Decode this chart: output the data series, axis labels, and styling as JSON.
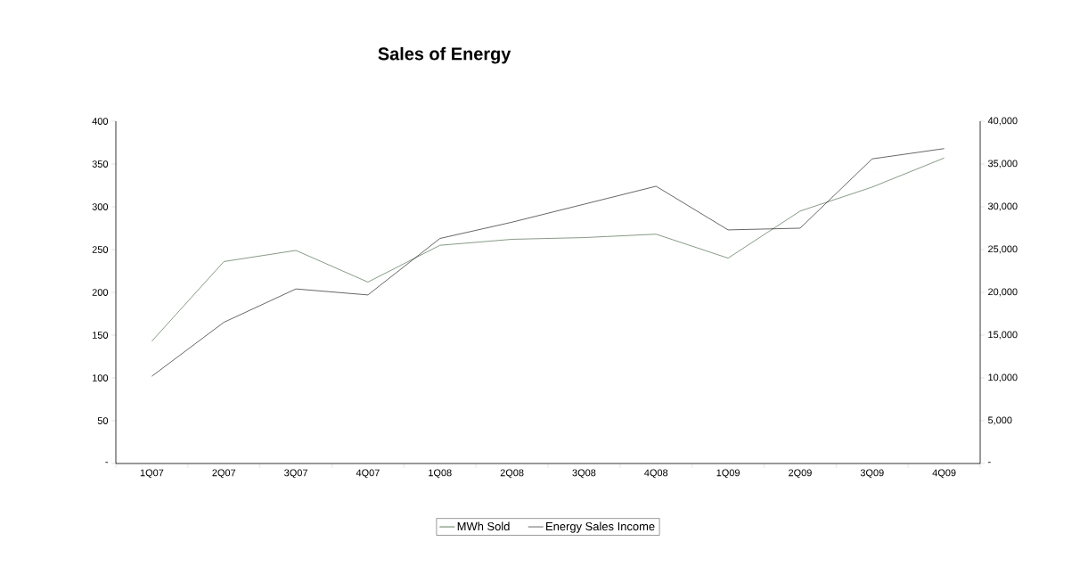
{
  "chart_data": {
    "type": "line",
    "title": "Sales of Energy",
    "categories": [
      "1Q07",
      "2Q07",
      "3Q07",
      "4Q07",
      "1Q08",
      "2Q08",
      "3Q08",
      "4Q08",
      "1Q09",
      "2Q09",
      "3Q09",
      "4Q09"
    ],
    "series": [
      {
        "name": "MWh Sold",
        "color": "#2e5e2e",
        "values": [
          143,
          236,
          249,
          212,
          255,
          262,
          264,
          268,
          240,
          295,
          323,
          357
        ]
      },
      {
        "name": "Energy Sales Income",
        "color": "#000000",
        "axis": "y2",
        "values": [
          10200,
          16500,
          20400,
          19700,
          26300,
          28200,
          30300,
          32400,
          27300,
          27500,
          35600,
          36800
        ]
      }
    ],
    "ylim": [
      0,
      400
    ],
    "yticks": [
      {
        "value": 0,
        "label": "-"
      },
      50,
      100,
      150,
      200,
      250,
      300,
      350,
      400
    ],
    "y2lim": [
      0,
      40000
    ],
    "y2ticks": [
      {
        "value": 0,
        "label": "-"
      },
      {
        "value": 5000,
        "label": "5,000"
      },
      {
        "value": 10000,
        "label": "10,000"
      },
      {
        "value": 15000,
        "label": "15,000"
      },
      {
        "value": 20000,
        "label": "20,000"
      },
      {
        "value": 25000,
        "label": "25,000"
      },
      {
        "value": 30000,
        "label": "30,000"
      },
      {
        "value": 35000,
        "label": "35,000"
      },
      {
        "value": 40000,
        "label": "40,000"
      }
    ],
    "legend": "bottom",
    "grid": false,
    "marker": "none",
    "line_style": "solid"
  }
}
